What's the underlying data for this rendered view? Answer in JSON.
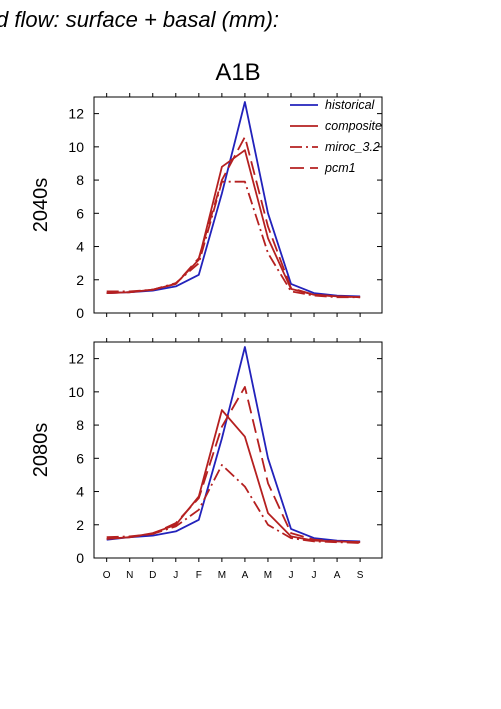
{
  "header": "d flow: surface + basal (mm):",
  "scenario": "A1B",
  "colors": {
    "historical": "#2222bb",
    "future": "#b52020"
  },
  "chart_data": [
    {
      "type": "line",
      "row_label": "2040s",
      "categories": [
        "O",
        "N",
        "D",
        "J",
        "F",
        "M",
        "A",
        "M",
        "J",
        "J",
        "A",
        "S"
      ],
      "ylim": [
        0,
        13
      ],
      "yticks": [
        0,
        2,
        4,
        6,
        8,
        10,
        12
      ],
      "legend": true,
      "series": [
        {
          "name": "historical",
          "style": "solid",
          "color": "#2222bb",
          "values": [
            1.2,
            1.25,
            1.35,
            1.6,
            2.3,
            7.2,
            12.7,
            6.0,
            1.75,
            1.2,
            1.05,
            1.0
          ]
        },
        {
          "name": "composite",
          "style": "solid",
          "color": "#b52020",
          "values": [
            1.2,
            1.25,
            1.4,
            1.75,
            3.2,
            8.8,
            9.8,
            4.5,
            1.45,
            1.1,
            1.0,
            0.95
          ]
        },
        {
          "name": "miroc_3.2",
          "style": "dashdot",
          "color": "#b52020",
          "values": [
            1.3,
            1.3,
            1.4,
            1.8,
            3.0,
            7.9,
            7.9,
            3.6,
            1.3,
            1.05,
            0.95,
            0.95
          ]
        },
        {
          "name": "pcm1",
          "style": "dashed",
          "color": "#b52020",
          "values": [
            1.2,
            1.25,
            1.4,
            1.75,
            3.3,
            8.0,
            10.6,
            5.2,
            1.5,
            1.1,
            1.0,
            0.95
          ]
        }
      ]
    },
    {
      "type": "line",
      "row_label": "2080s",
      "categories": [
        "O",
        "N",
        "D",
        "J",
        "F",
        "M",
        "A",
        "M",
        "J",
        "J",
        "A",
        "S"
      ],
      "ylim": [
        0,
        13
      ],
      "yticks": [
        0,
        2,
        4,
        6,
        8,
        10,
        12
      ],
      "legend": false,
      "series": [
        {
          "name": "historical",
          "style": "solid",
          "color": "#2222bb",
          "values": [
            1.1,
            1.25,
            1.35,
            1.6,
            2.3,
            7.2,
            12.7,
            6.0,
            1.75,
            1.2,
            1.05,
            1.0
          ]
        },
        {
          "name": "composite",
          "style": "solid",
          "color": "#b52020",
          "values": [
            1.15,
            1.25,
            1.5,
            2.0,
            3.7,
            8.9,
            7.3,
            2.7,
            1.3,
            1.05,
            1.0,
            0.95
          ]
        },
        {
          "name": "miroc_3.2",
          "style": "dashdot",
          "color": "#b52020",
          "values": [
            1.25,
            1.3,
            1.45,
            1.9,
            2.9,
            5.6,
            4.3,
            2.0,
            1.2,
            1.0,
            0.95,
            0.9
          ]
        },
        {
          "name": "pcm1",
          "style": "dashed",
          "color": "#b52020",
          "values": [
            1.15,
            1.25,
            1.45,
            2.1,
            3.6,
            7.9,
            10.3,
            4.5,
            1.5,
            1.1,
            1.0,
            0.95
          ]
        }
      ]
    }
  ]
}
